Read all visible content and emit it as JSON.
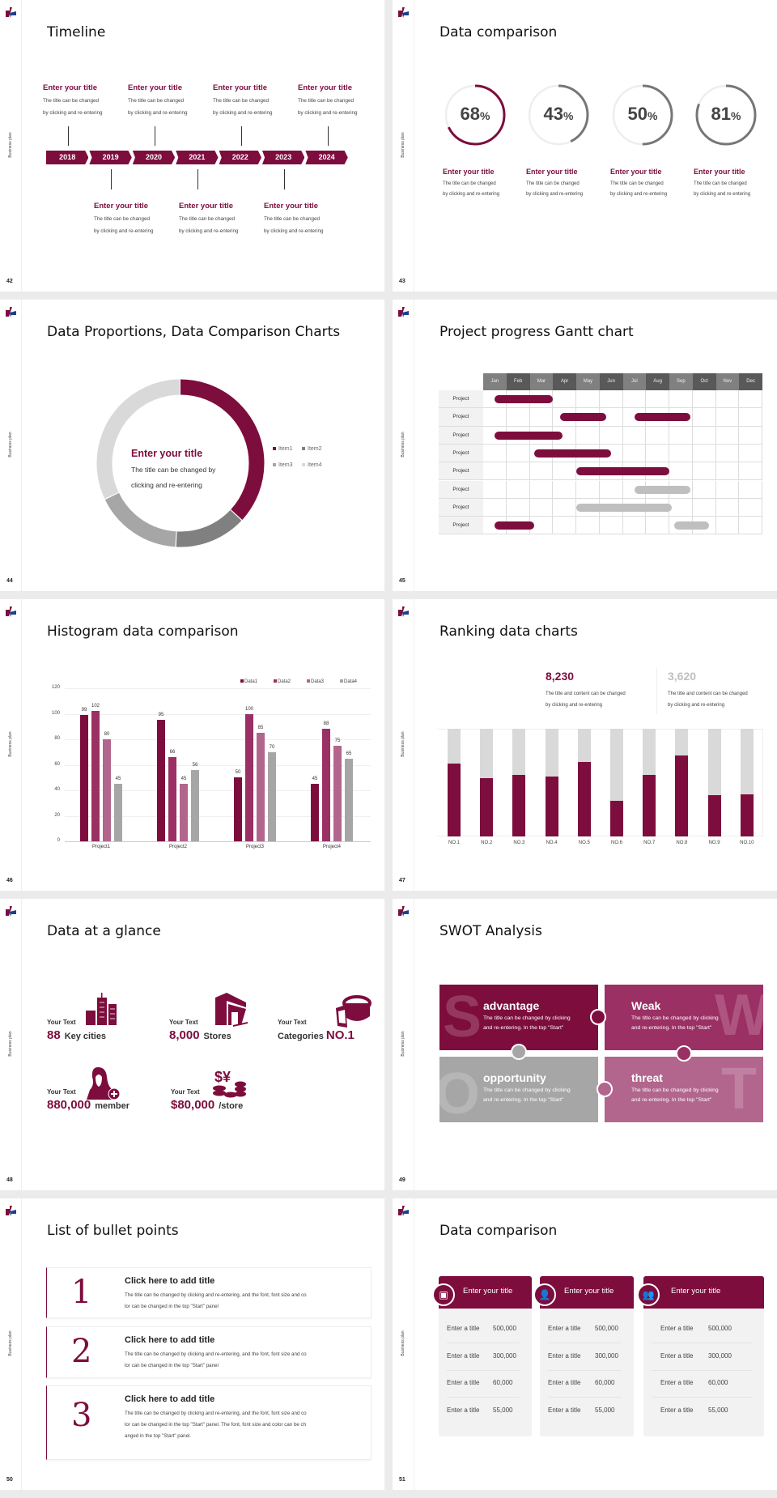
{
  "sidebar_label": "Business plan",
  "colors": {
    "accent": "#7d0d3d",
    "accent2": "#9b3064",
    "accent3": "#b2668d",
    "gray": "#a6a6a6",
    "light_gray": "#d9d9d9",
    "dark_gray": "#6f6f6f"
  },
  "timeline": {
    "page": "42",
    "title": "Timeline",
    "years": [
      "2018",
      "2019",
      "2020",
      "2021",
      "2022",
      "2023",
      "2024"
    ],
    "top_items": [
      {
        "title": "Enter your title",
        "line1": "The title can be changed",
        "line2": "by clicking and re-entering"
      },
      {
        "title": "Enter your title",
        "line1": "The title can be changed",
        "line2": "by clicking and re-entering"
      },
      {
        "title": "Enter your title",
        "line1": "The title can be changed",
        "line2": "by clicking and re-entering"
      },
      {
        "title": "Enter your title",
        "line1": "The title can be changed",
        "line2": "by clicking and re-entering"
      }
    ],
    "bottom_items": [
      {
        "title": "Enter your title",
        "line1": "The title can be changed",
        "line2": "by clicking and re-entering"
      },
      {
        "title": "Enter your title",
        "line1": "The title can be changed",
        "line2": "by clicking and re-entering"
      },
      {
        "title": "Enter your title",
        "line1": "The title can be changed",
        "line2": "by clicking and re-entering"
      }
    ]
  },
  "percent": {
    "page": "43",
    "title": "Data comparison",
    "items": [
      {
        "value": 68,
        "number": "68",
        "unit": "%",
        "title": "Enter your title",
        "line1": "The title can be changed",
        "line2": "by clicking and re-entering",
        "color": "#7d0d3d"
      },
      {
        "value": 43,
        "number": "43",
        "unit": "%",
        "title": "Enter your title",
        "line1": "The title can be changed",
        "line2": "by clicking and re-entering",
        "color": "#777777"
      },
      {
        "value": 50,
        "number": "50",
        "unit": "%",
        "title": "Enter your title",
        "line1": "The title can be changed",
        "line2": "by clicking and re-entering",
        "color": "#777777"
      },
      {
        "value": 81,
        "number": "81",
        "unit": "%",
        "title": "Enter your title",
        "line1": "The title can be changed",
        "line2": "by clicking and re-entering",
        "color": "#777777"
      }
    ]
  },
  "donut": {
    "page": "44",
    "title": "Data Proportions, Data Comparison Charts",
    "center_title": "Enter your title",
    "center_line1": "The title can be changed by",
    "center_line2": "clicking and re-entering"
  },
  "gantt": {
    "page": "45",
    "title": "Project progress Gantt chart"
  },
  "histogram": {
    "page": "46",
    "title": "Histogram data comparison"
  },
  "ranking": {
    "page": "47",
    "title": "Ranking data charts",
    "stats": [
      {
        "value": "8,230",
        "line1": "The title and content can be changed",
        "line2": "by clicking and re-entering",
        "color": "#7d0d3d"
      },
      {
        "value": "3,620",
        "line1": "The title and content can be changed",
        "line2": "by clicking and re-entering",
        "color": "#bfbfbf"
      }
    ]
  },
  "glance": {
    "page": "48",
    "title": "Data at a glance",
    "items": [
      {
        "label": "Your Text",
        "number": "88",
        "suffix": "Key cities",
        "icon": "city-buildings-icon"
      },
      {
        "label": "Your Text",
        "number": "8,000",
        "suffix": "Stores",
        "icon": "store-icon"
      },
      {
        "label": "Your Text",
        "prefix": "Categories",
        "number": "NO.1",
        "icon": "cheese-pie-icon"
      },
      {
        "label": "Your Text",
        "number": "880,000",
        "suffix": "member",
        "icon": "add-member-icon"
      },
      {
        "label": "Your Text",
        "number": "$80,000",
        "suffix": "/store",
        "icon": "coins-icon"
      }
    ]
  },
  "swot": {
    "page": "49",
    "title": "SWOT Analysis",
    "items": [
      {
        "letter": "S",
        "title": "advantage",
        "line1": "The title can be changed by clicking",
        "line2": "and re-entering. In the top \"Start\"",
        "color": "#7d0d3d"
      },
      {
        "letter": "W",
        "title": "Weak",
        "line1": "The title can be changed by clicking",
        "line2": "and re-entering. In the top \"Start\"",
        "color": "#9b3064"
      },
      {
        "letter": "O",
        "title": "opportunity",
        "line1": "The title can be changed by clicking",
        "line2": "and re-entering. In the top \"Start\"",
        "color": "#a6a6a6"
      },
      {
        "letter": "T",
        "title": "threat",
        "line1": "The title can be changed by clicking",
        "line2": "and re-entering. In the top \"Start\"",
        "color": "#b2668d"
      }
    ]
  },
  "bullets": {
    "page": "50",
    "title": "List of bullet points",
    "items": [
      {
        "number": "1",
        "title": "Click here to add title",
        "lines": [
          "The title can be changed by clicking and re-entering, and the font, font size and co",
          "lor can be changed in the top \"Start\" panel"
        ]
      },
      {
        "number": "2",
        "title": "Click here to add title",
        "lines": [
          "The title can be changed by clicking and re-entering, and the font, font size and co",
          "lor can be changed in the top \"Start\" panel"
        ]
      },
      {
        "number": "3",
        "title": "Click here to add title",
        "lines": [
          "The title can be changed by clicking and re-entering, and the font, font size and co",
          "lor can be changed in the top \"Start\" panel. The font, font size and color can be ch",
          "anged in the top \"Start\" panel."
        ]
      }
    ]
  },
  "cards": {
    "page": "51",
    "title": "Data comparison",
    "items": [
      {
        "header": "Enter your title",
        "icon": "id-card-add-icon",
        "rows": [
          {
            "label": "Enter a title",
            "value": "500,000"
          },
          {
            "label": "Enter a title",
            "value": "300,000"
          },
          {
            "label": "Enter a title",
            "value": "60,000"
          },
          {
            "label": "Enter a title",
            "value": "55,000"
          }
        ]
      },
      {
        "header": "Enter your title",
        "icon": "user-add-icon",
        "rows": [
          {
            "label": "Enter a title",
            "value": "500,000"
          },
          {
            "label": "Enter a title",
            "value": "300,000"
          },
          {
            "label": "Enter a title",
            "value": "60,000"
          },
          {
            "label": "Enter a title",
            "value": "55,000"
          }
        ]
      },
      {
        "header": "Enter your title",
        "icon": "team-icon",
        "rows": [
          {
            "label": "Enter a title",
            "value": "500,000"
          },
          {
            "label": "Enter a title",
            "value": "300,000"
          },
          {
            "label": "Enter a title",
            "value": "60,000"
          },
          {
            "label": "Enter a title",
            "value": "55,000"
          }
        ]
      }
    ]
  },
  "chart_data": [
    {
      "type": "pie",
      "variant": "donut",
      "categories": [
        "Item1",
        "Item2",
        "Item3",
        "Item4"
      ],
      "values": [
        37,
        14,
        17,
        32
      ],
      "colors": [
        "#7d0d3d",
        "#808080",
        "#a6a6a6",
        "#d9d9d9"
      ],
      "legend": "right"
    },
    {
      "type": "bar",
      "variant": "gantt",
      "months": [
        "Jan",
        "Feb",
        "Mar",
        "Apr",
        "May",
        "Jun",
        "Jul",
        "Aug",
        "Sep",
        "Oct",
        "Nov",
        "Dec"
      ],
      "rows": [
        {
          "label": "Project",
          "bars": [
            {
              "start": 0.5,
              "end": 3.0,
              "status": "active"
            }
          ]
        },
        {
          "label": "Project",
          "bars": [
            {
              "start": 3.3,
              "end": 5.3,
              "status": "active"
            },
            {
              "start": 6.5,
              "end": 8.9,
              "status": "active"
            }
          ]
        },
        {
          "label": "Project",
          "bars": [
            {
              "start": 0.5,
              "end": 3.4,
              "status": "active"
            }
          ]
        },
        {
          "label": "Project",
          "bars": [
            {
              "start": 2.2,
              "end": 5.5,
              "status": "active"
            }
          ]
        },
        {
          "label": "Project",
          "bars": [
            {
              "start": 4.0,
              "end": 8.0,
              "status": "active"
            }
          ]
        },
        {
          "label": "Project",
          "bars": [
            {
              "start": 6.5,
              "end": 8.9,
              "status": "planned"
            }
          ]
        },
        {
          "label": "Project",
          "bars": [
            {
              "start": 4.0,
              "end": 8.1,
              "status": "planned"
            }
          ]
        },
        {
          "label": "Project",
          "bars": [
            {
              "start": 0.5,
              "end": 2.2,
              "status": "active"
            },
            {
              "start": 8.2,
              "end": 9.7,
              "status": "planned"
            }
          ]
        }
      ],
      "colors": {
        "active": "#7d0d3d",
        "planned": "#bfbfbf"
      }
    },
    {
      "type": "bar",
      "categories": [
        "Project1",
        "Project2",
        "Project3",
        "Project4"
      ],
      "series": [
        {
          "name": "Data1",
          "values": [
            99,
            95,
            50,
            45
          ],
          "color": "#7d0d3d"
        },
        {
          "name": "Data2",
          "values": [
            102,
            66,
            100,
            88
          ],
          "color": "#9b3064"
        },
        {
          "name": "Data3",
          "values": [
            80,
            45,
            85,
            75
          ],
          "color": "#b2668d"
        },
        {
          "name": "Data4",
          "values": [
            45,
            56,
            70,
            65
          ],
          "color": "#a6a6a6"
        }
      ],
      "ylim": [
        0,
        120
      ],
      "yticks": [
        0,
        20,
        40,
        60,
        80,
        100,
        120
      ],
      "grid": true,
      "legend": "top-right",
      "data_labels": true
    },
    {
      "type": "bar",
      "variant": "stacked-100",
      "categories": [
        "NO.1",
        "NO.2",
        "NO.3",
        "NO.4",
        "NO.5",
        "NO.6",
        "NO.7",
        "NO.8",
        "NO.9",
        "NO.10"
      ],
      "values": [
        0.68,
        0.54,
        0.57,
        0.56,
        0.69,
        0.33,
        0.57,
        0.75,
        0.38,
        0.39
      ],
      "colors": {
        "fill": "#7d0d3d",
        "track": "#d9d9d9"
      }
    }
  ]
}
